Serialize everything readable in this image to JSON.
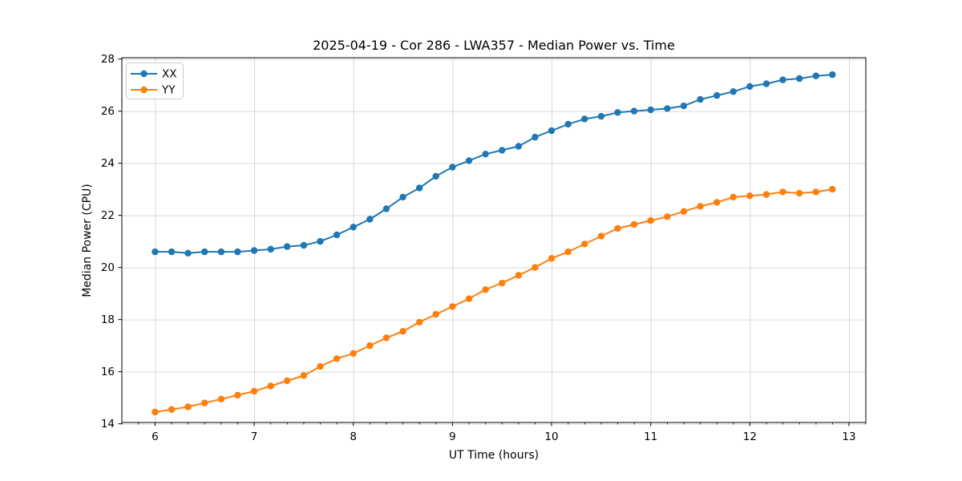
{
  "header": {
    "title": "2025-04-19 - Cor 286 - LWA357 - Median Power vs. Time"
  },
  "colors": {
    "series_xx": "#1f77b4",
    "series_yy": "#ff7f0e",
    "grid": "#d9d9d9",
    "spine": "#000000",
    "legend_border": "#cccccc",
    "background": "#ffffff"
  },
  "chart_data": {
    "type": "line",
    "title": "2025-04-19 - Cor 286 - LWA357 - Median Power vs. Time",
    "xlabel": "UT Time (hours)",
    "ylabel": "Median Power (CPU)",
    "xlim": [
      5.665,
      13.17
    ],
    "ylim": [
      14.05,
      28.05
    ],
    "xticks": [
      6,
      7,
      8,
      9,
      10,
      11,
      12,
      13
    ],
    "yticks": [
      14,
      16,
      18,
      20,
      22,
      24,
      26,
      28
    ],
    "x_minor_step": 0.1667,
    "grid": true,
    "legend_position": "upper-left",
    "marker": "circle",
    "x": [
      6.0,
      6.167,
      6.333,
      6.5,
      6.667,
      6.833,
      7.0,
      7.167,
      7.333,
      7.5,
      7.667,
      7.833,
      8.0,
      8.167,
      8.333,
      8.5,
      8.667,
      8.833,
      9.0,
      9.167,
      9.333,
      9.5,
      9.667,
      9.833,
      10.0,
      10.167,
      10.333,
      10.5,
      10.667,
      10.833,
      11.0,
      11.167,
      11.333,
      11.5,
      11.667,
      11.833,
      12.0,
      12.167,
      12.333,
      12.5,
      12.667,
      12.833
    ],
    "series": [
      {
        "name": "XX",
        "color": "#1f77b4",
        "values": [
          20.6,
          20.6,
          20.55,
          20.6,
          20.6,
          20.6,
          20.65,
          20.7,
          20.8,
          20.85,
          21.0,
          21.25,
          21.55,
          21.85,
          22.25,
          22.7,
          23.05,
          23.5,
          23.85,
          24.1,
          24.35,
          24.5,
          24.65,
          25.0,
          25.25,
          25.5,
          25.7,
          25.8,
          25.95,
          26.0,
          26.05,
          26.1,
          26.2,
          26.45,
          26.6,
          26.75,
          26.95,
          27.05,
          27.2,
          27.25,
          27.35,
          27.4
        ]
      },
      {
        "name": "YY",
        "color": "#ff7f0e",
        "values": [
          14.45,
          14.55,
          14.65,
          14.8,
          14.95,
          15.1,
          15.25,
          15.45,
          15.65,
          15.85,
          16.2,
          16.5,
          16.7,
          17.0,
          17.3,
          17.55,
          17.9,
          18.2,
          18.5,
          18.8,
          19.15,
          19.4,
          19.7,
          20.0,
          20.35,
          20.6,
          20.9,
          21.2,
          21.5,
          21.65,
          21.8,
          21.95,
          22.15,
          22.35,
          22.5,
          22.7,
          22.75,
          22.8,
          22.9,
          22.85,
          22.9,
          23.0
        ]
      }
    ]
  }
}
